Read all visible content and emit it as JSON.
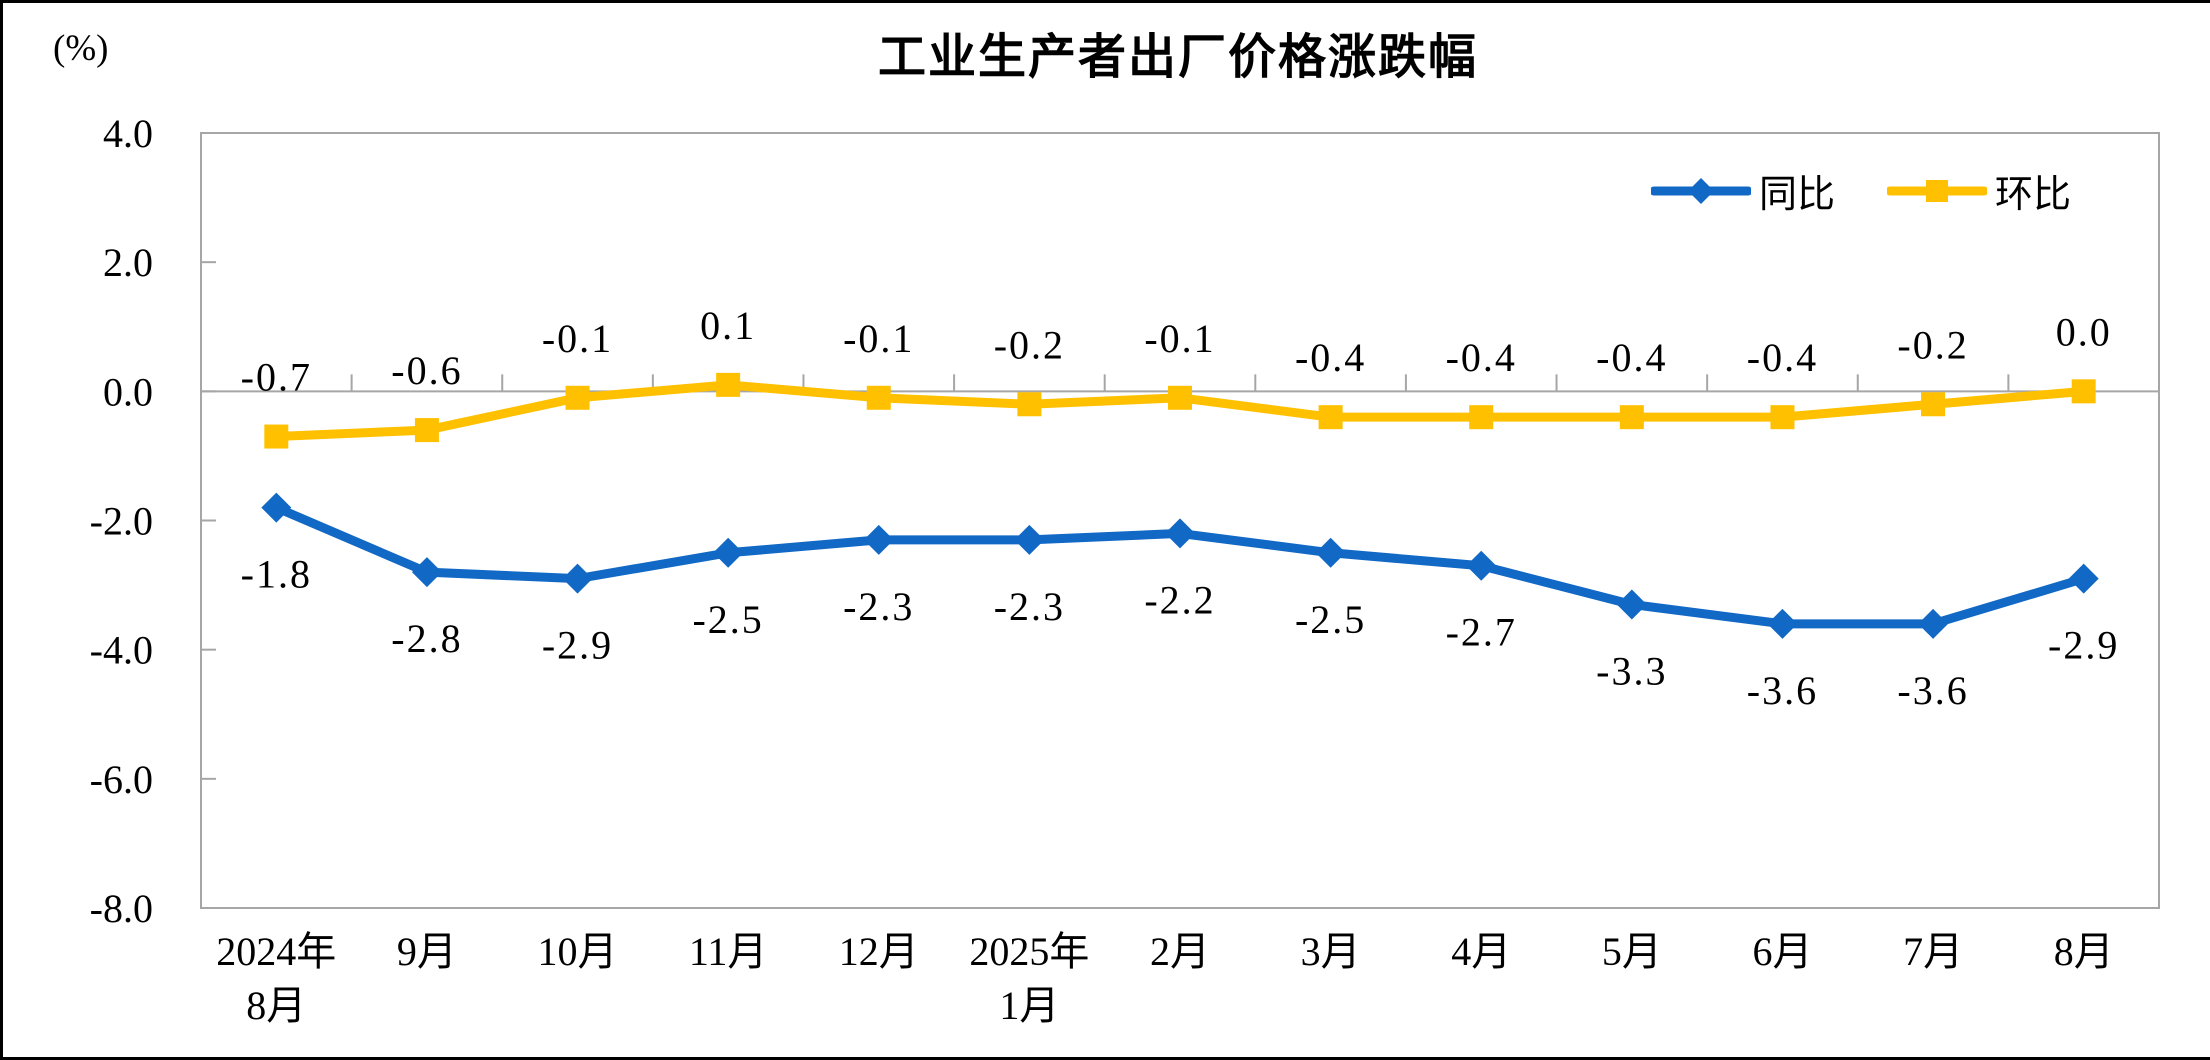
{
  "title": "工业生产者出厂价格涨跌幅",
  "unit_label": "(%)",
  "chart_data": {
    "type": "line",
    "categories": [
      "2024年\n8月",
      "9月",
      "10月",
      "11月",
      "12月",
      "2025年\n1月",
      "2月",
      "3月",
      "4月",
      "5月",
      "6月",
      "7月",
      "8月"
    ],
    "series": [
      {
        "name": "同比",
        "color": "#1168C5",
        "marker": "diamond",
        "label_position": "below",
        "values": [
          -1.8,
          -2.8,
          -2.9,
          -2.5,
          -2.3,
          -2.3,
          -2.2,
          -2.5,
          -2.7,
          -3.3,
          -3.6,
          -3.6,
          -2.9
        ],
        "labels": [
          "-1.8",
          "-2.8",
          "-2.9",
          "-2.5",
          "-2.3",
          "-2.3",
          "-2.2",
          "-2.5",
          "-2.7",
          "-3.3",
          "-3.6",
          "-3.6",
          "-2.9"
        ]
      },
      {
        "name": "环比",
        "color": "#FFC000",
        "marker": "square",
        "label_position": "above",
        "values": [
          -0.7,
          -0.6,
          -0.1,
          0.1,
          -0.1,
          -0.2,
          -0.1,
          -0.4,
          -0.4,
          -0.4,
          -0.4,
          -0.2,
          0.0
        ],
        "labels": [
          "-0.7",
          "-0.6",
          "-0.1",
          "0.1",
          "-0.1",
          "-0.2",
          "-0.1",
          "-0.4",
          "-0.4",
          "-0.4",
          "-0.4",
          "-0.2",
          "0.0"
        ]
      }
    ],
    "ylim": [
      -8.0,
      4.0
    ],
    "yticks": [
      4.0,
      2.0,
      0.0,
      -2.0,
      -4.0,
      -6.0,
      -8.0
    ],
    "ytick_labels": [
      "4.0",
      "2.0",
      "0.0",
      "-2.0",
      "-4.0",
      "-6.0",
      "-8.0"
    ],
    "ylabel": "(%)",
    "grid": false,
    "legend_position": "top-right"
  }
}
